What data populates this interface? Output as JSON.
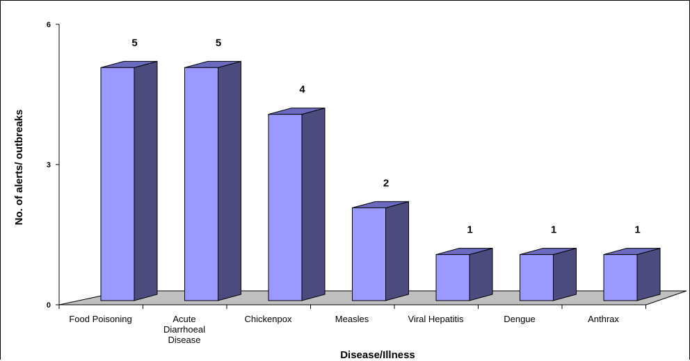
{
  "chart_data": {
    "type": "bar",
    "categories": [
      [
        "Food Poisoning"
      ],
      [
        "Acute",
        "Diarrhoeal",
        "Disease"
      ],
      [
        "Chickenpox"
      ],
      [
        "Measles"
      ],
      [
        "Viral Hepatitis"
      ],
      [
        "Dengue"
      ],
      [
        "Anthrax"
      ]
    ],
    "values": [
      5,
      5,
      4,
      2,
      1,
      1,
      1
    ],
    "value_labels": [
      "5",
      "5",
      "4",
      "2",
      "1",
      "1",
      "1"
    ],
    "xlabel": "Disease/Illness",
    "ylabel": "No. of alerts/ outbreaks",
    "ylim": [
      0,
      6
    ],
    "yticks": [
      {
        "value": 0,
        "label": "0"
      },
      {
        "value": 3,
        "label": "3"
      },
      {
        "value": 6,
        "label": "6"
      }
    ],
    "style": "3d-column",
    "grid": false,
    "legend": "none",
    "colors": {
      "bar_front": "#9999ff",
      "bar_side": "#4b4b7e",
      "bar_top": "#6a6ac0",
      "floor": "#c0c0c0",
      "axis": "#000000"
    }
  }
}
